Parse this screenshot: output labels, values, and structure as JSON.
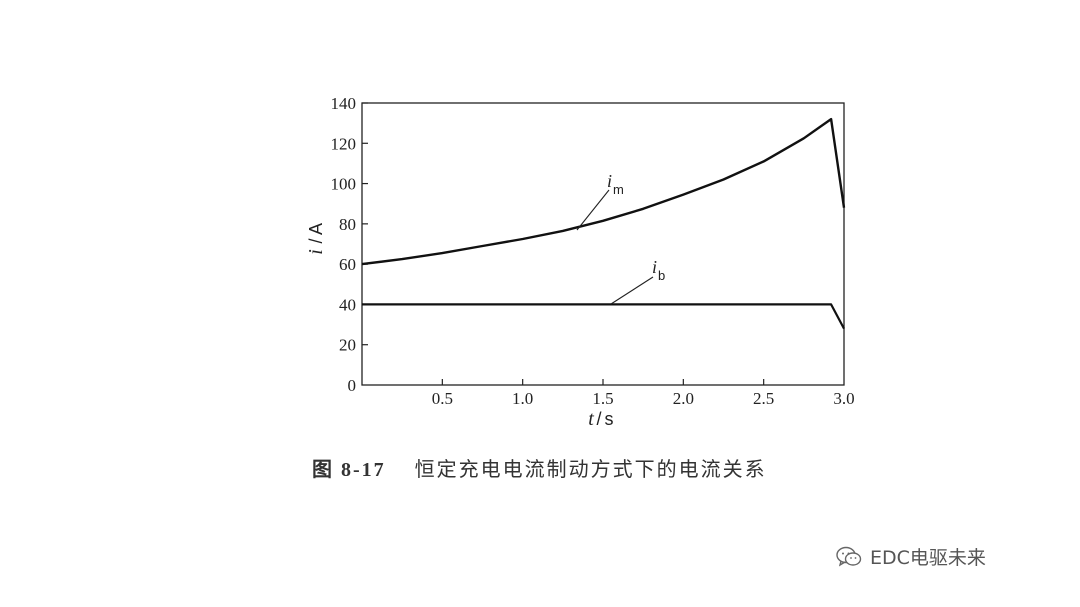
{
  "chart_data": {
    "type": "line",
    "x_ticks": [
      "0.5",
      "1.0",
      "1.5",
      "2.0",
      "2.5",
      "3.0"
    ],
    "x_tick_values": [
      0.5,
      1.0,
      1.5,
      2.0,
      2.5,
      3.0
    ],
    "y_ticks": [
      "0",
      "20",
      "40",
      "60",
      "80",
      "100",
      "120",
      "140"
    ],
    "y_tick_values": [
      0,
      20,
      40,
      60,
      80,
      100,
      120,
      140
    ],
    "xlim": [
      0,
      3.0
    ],
    "ylim": [
      0,
      140
    ],
    "xlabel": {
      "var": "t",
      "unit": "s"
    },
    "ylabel": {
      "var": "i",
      "unit": "A"
    },
    "grid": false,
    "series": [
      {
        "name": "i_m",
        "label_main": "i",
        "label_sub": "m",
        "x": [
          0,
          0.25,
          0.5,
          0.75,
          1.0,
          1.25,
          1.5,
          1.75,
          2.0,
          2.25,
          2.5,
          2.75,
          2.92,
          3.0
        ],
        "y": [
          60,
          62.5,
          65.5,
          69,
          72.5,
          76.5,
          81.5,
          87.5,
          94.5,
          102,
          111,
          122.5,
          132,
          88
        ]
      },
      {
        "name": "i_b",
        "label_main": "i",
        "label_sub": "b",
        "x": [
          0,
          0.5,
          1.0,
          1.5,
          2.0,
          2.5,
          2.92,
          3.0
        ],
        "y": [
          40,
          40,
          40,
          40,
          40,
          40,
          40,
          28
        ]
      }
    ]
  },
  "caption": {
    "figure_number": "图 8-17",
    "text": "恒定充电电流制动方式下的电流关系"
  },
  "watermark": {
    "text": "EDC电驱未来",
    "icon": "wechat-icon"
  }
}
